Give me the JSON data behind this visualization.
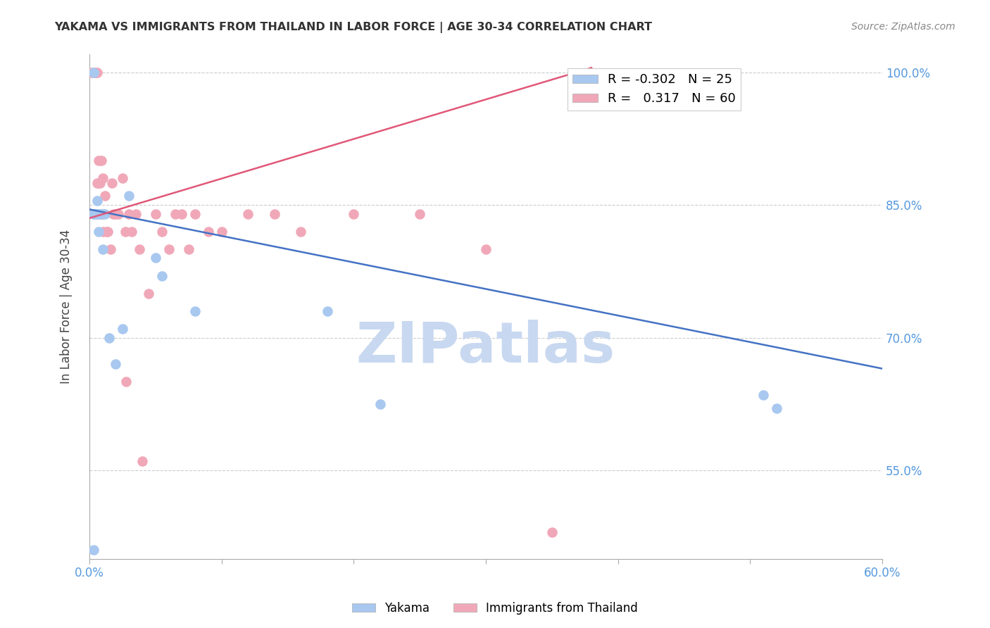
{
  "title": "YAKAMA VS IMMIGRANTS FROM THAILAND IN LABOR FORCE | AGE 30-34 CORRELATION CHART",
  "source": "Source: ZipAtlas.com",
  "ylabel": "In Labor Force | Age 30-34",
  "xlim": [
    0.0,
    0.6
  ],
  "ylim": [
    0.45,
    1.02
  ],
  "xticks": [
    0.0,
    0.1,
    0.2,
    0.3,
    0.4,
    0.5,
    0.6
  ],
  "xticklabels": [
    "0.0%",
    "",
    "",
    "",
    "",
    "",
    "60.0%"
  ],
  "yticks": [
    0.55,
    0.7,
    0.85,
    1.0
  ],
  "yticklabels": [
    "55.0%",
    "70.0%",
    "85.0%",
    "100.0%"
  ],
  "yakama_color": "#A8C8F0",
  "thailand_color": "#F0A8B8",
  "yakama_line_color": "#4472C4",
  "thailand_line_color": "#E05878",
  "watermark": "ZIPatlas",
  "watermark_color": "#C8D8F0",
  "yakama_line_x0": 0.0,
  "yakama_line_y0": 0.845,
  "yakama_line_x1": 0.6,
  "yakama_line_y1": 0.665,
  "thailand_line_x0": 0.0,
  "thailand_line_y0": 0.835,
  "thailand_line_x1": 0.38,
  "thailand_line_y1": 1.005,
  "yakama_x": [
    0.003,
    0.003,
    0.003,
    0.004,
    0.004,
    0.005,
    0.005,
    0.006,
    0.006,
    0.007,
    0.008,
    0.009,
    0.01,
    0.012,
    0.015,
    0.02,
    0.025,
    0.03,
    0.05,
    0.055,
    0.08,
    0.18,
    0.22,
    0.51,
    0.52
  ],
  "yakama_y": [
    1.0,
    0.84,
    0.46,
    0.84,
    0.84,
    0.84,
    0.84,
    0.855,
    0.84,
    0.82,
    0.84,
    0.84,
    0.8,
    0.84,
    0.7,
    0.67,
    0.71,
    0.86,
    0.79,
    0.77,
    0.73,
    0.73,
    0.625,
    0.635,
    0.62
  ],
  "thailand_x": [
    0.002,
    0.002,
    0.002,
    0.003,
    0.003,
    0.003,
    0.003,
    0.003,
    0.003,
    0.004,
    0.004,
    0.004,
    0.005,
    0.005,
    0.005,
    0.005,
    0.006,
    0.006,
    0.007,
    0.007,
    0.008,
    0.008,
    0.009,
    0.009,
    0.01,
    0.01,
    0.01,
    0.012,
    0.013,
    0.014,
    0.016,
    0.017,
    0.018,
    0.02,
    0.022,
    0.025,
    0.027,
    0.028,
    0.03,
    0.032,
    0.035,
    0.038,
    0.04,
    0.045,
    0.05,
    0.055,
    0.06,
    0.065,
    0.07,
    0.075,
    0.08,
    0.09,
    0.1,
    0.12,
    0.14,
    0.16,
    0.2,
    0.25,
    0.3,
    0.35
  ],
  "thailand_y": [
    1.0,
    1.0,
    1.0,
    1.0,
    1.0,
    1.0,
    1.0,
    1.0,
    1.0,
    1.0,
    1.0,
    1.0,
    1.0,
    1.0,
    1.0,
    1.0,
    1.0,
    0.875,
    0.9,
    0.875,
    0.875,
    0.84,
    0.9,
    0.84,
    0.88,
    0.84,
    0.82,
    0.86,
    0.82,
    0.82,
    0.8,
    0.875,
    0.84,
    0.84,
    0.84,
    0.88,
    0.82,
    0.65,
    0.84,
    0.82,
    0.84,
    0.8,
    0.56,
    0.75,
    0.84,
    0.82,
    0.8,
    0.84,
    0.84,
    0.8,
    0.84,
    0.82,
    0.82,
    0.84,
    0.84,
    0.82,
    0.84,
    0.84,
    0.8,
    0.48
  ]
}
